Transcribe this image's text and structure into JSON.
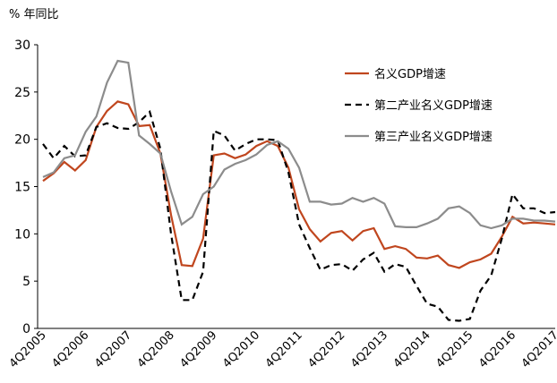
{
  "chart_data": {
    "type": "line",
    "title": "% 年同比",
    "categories": [
      "4Q2005",
      null,
      null,
      null,
      "4Q2006",
      null,
      null,
      null,
      "4Q2007",
      null,
      null,
      null,
      "4Q2008",
      null,
      null,
      null,
      "4Q2009",
      null,
      null,
      null,
      "4Q2010",
      null,
      null,
      null,
      "4Q2011",
      null,
      null,
      null,
      "4Q2012",
      null,
      null,
      null,
      "4Q2013",
      null,
      null,
      null,
      "4Q2014",
      null,
      null,
      null,
      "4Q2015",
      null,
      null,
      null,
      "4Q2016",
      null,
      null,
      null,
      "4Q2017"
    ],
    "series": [
      {
        "name": "名义GDP增速",
        "color": "#c0461e",
        "dashed": false,
        "values": [
          15.6,
          16.4,
          17.6,
          16.7,
          17.8,
          21.3,
          23.0,
          24.0,
          23.7,
          21.4,
          21.5,
          18.5,
          12.0,
          6.7,
          6.6,
          9.5,
          18.3,
          18.5,
          18.0,
          18.4,
          19.3,
          19.8,
          19.3,
          17.0,
          12.6,
          10.5,
          9.2,
          10.1,
          10.3,
          9.3,
          10.3,
          10.6,
          8.4,
          8.7,
          8.4,
          7.5,
          7.4,
          7.7,
          6.7,
          6.4,
          7.0,
          7.3,
          7.9,
          9.7,
          11.8,
          11.1,
          11.2,
          11.1,
          11.0
        ]
      },
      {
        "name": "第二产业名义GDP增速",
        "color": "#000000",
        "dashed": true,
        "values": [
          19.5,
          18.0,
          19.3,
          18.2,
          18.3,
          21.3,
          21.7,
          21.2,
          21.1,
          21.8,
          22.9,
          19.0,
          10.0,
          3.0,
          3.0,
          6.0,
          20.9,
          20.4,
          18.8,
          19.5,
          20.0,
          20.0,
          19.9,
          16.5,
          11.0,
          8.5,
          6.2,
          6.7,
          6.8,
          6.1,
          7.3,
          8.0,
          6.0,
          6.8,
          6.5,
          4.5,
          2.6,
          2.3,
          0.9,
          0.8,
          1.0,
          4.0,
          5.6,
          9.5,
          14.2,
          12.7,
          12.7,
          12.2,
          12.3
        ]
      },
      {
        "name": "第三产业名义GDP增速",
        "color": "#8c8c8c",
        "dashed": false,
        "values": [
          16.0,
          16.5,
          18.0,
          18.3,
          20.8,
          22.4,
          26.0,
          28.3,
          28.1,
          20.4,
          19.5,
          18.5,
          14.5,
          11.0,
          11.8,
          14.2,
          15.0,
          16.8,
          17.4,
          17.8,
          18.4,
          19.4,
          19.8,
          19.0,
          17.0,
          13.4,
          13.4,
          13.1,
          13.2,
          13.8,
          13.4,
          13.8,
          13.2,
          10.8,
          10.7,
          10.7,
          11.1,
          11.6,
          12.7,
          12.9,
          12.2,
          10.9,
          10.6,
          10.9,
          11.6,
          11.6,
          11.4,
          11.4,
          11.3
        ]
      }
    ],
    "ylim": [
      0,
      30
    ],
    "yticks": [
      0,
      5,
      10,
      15,
      20,
      25,
      30
    ],
    "grid": false
  }
}
